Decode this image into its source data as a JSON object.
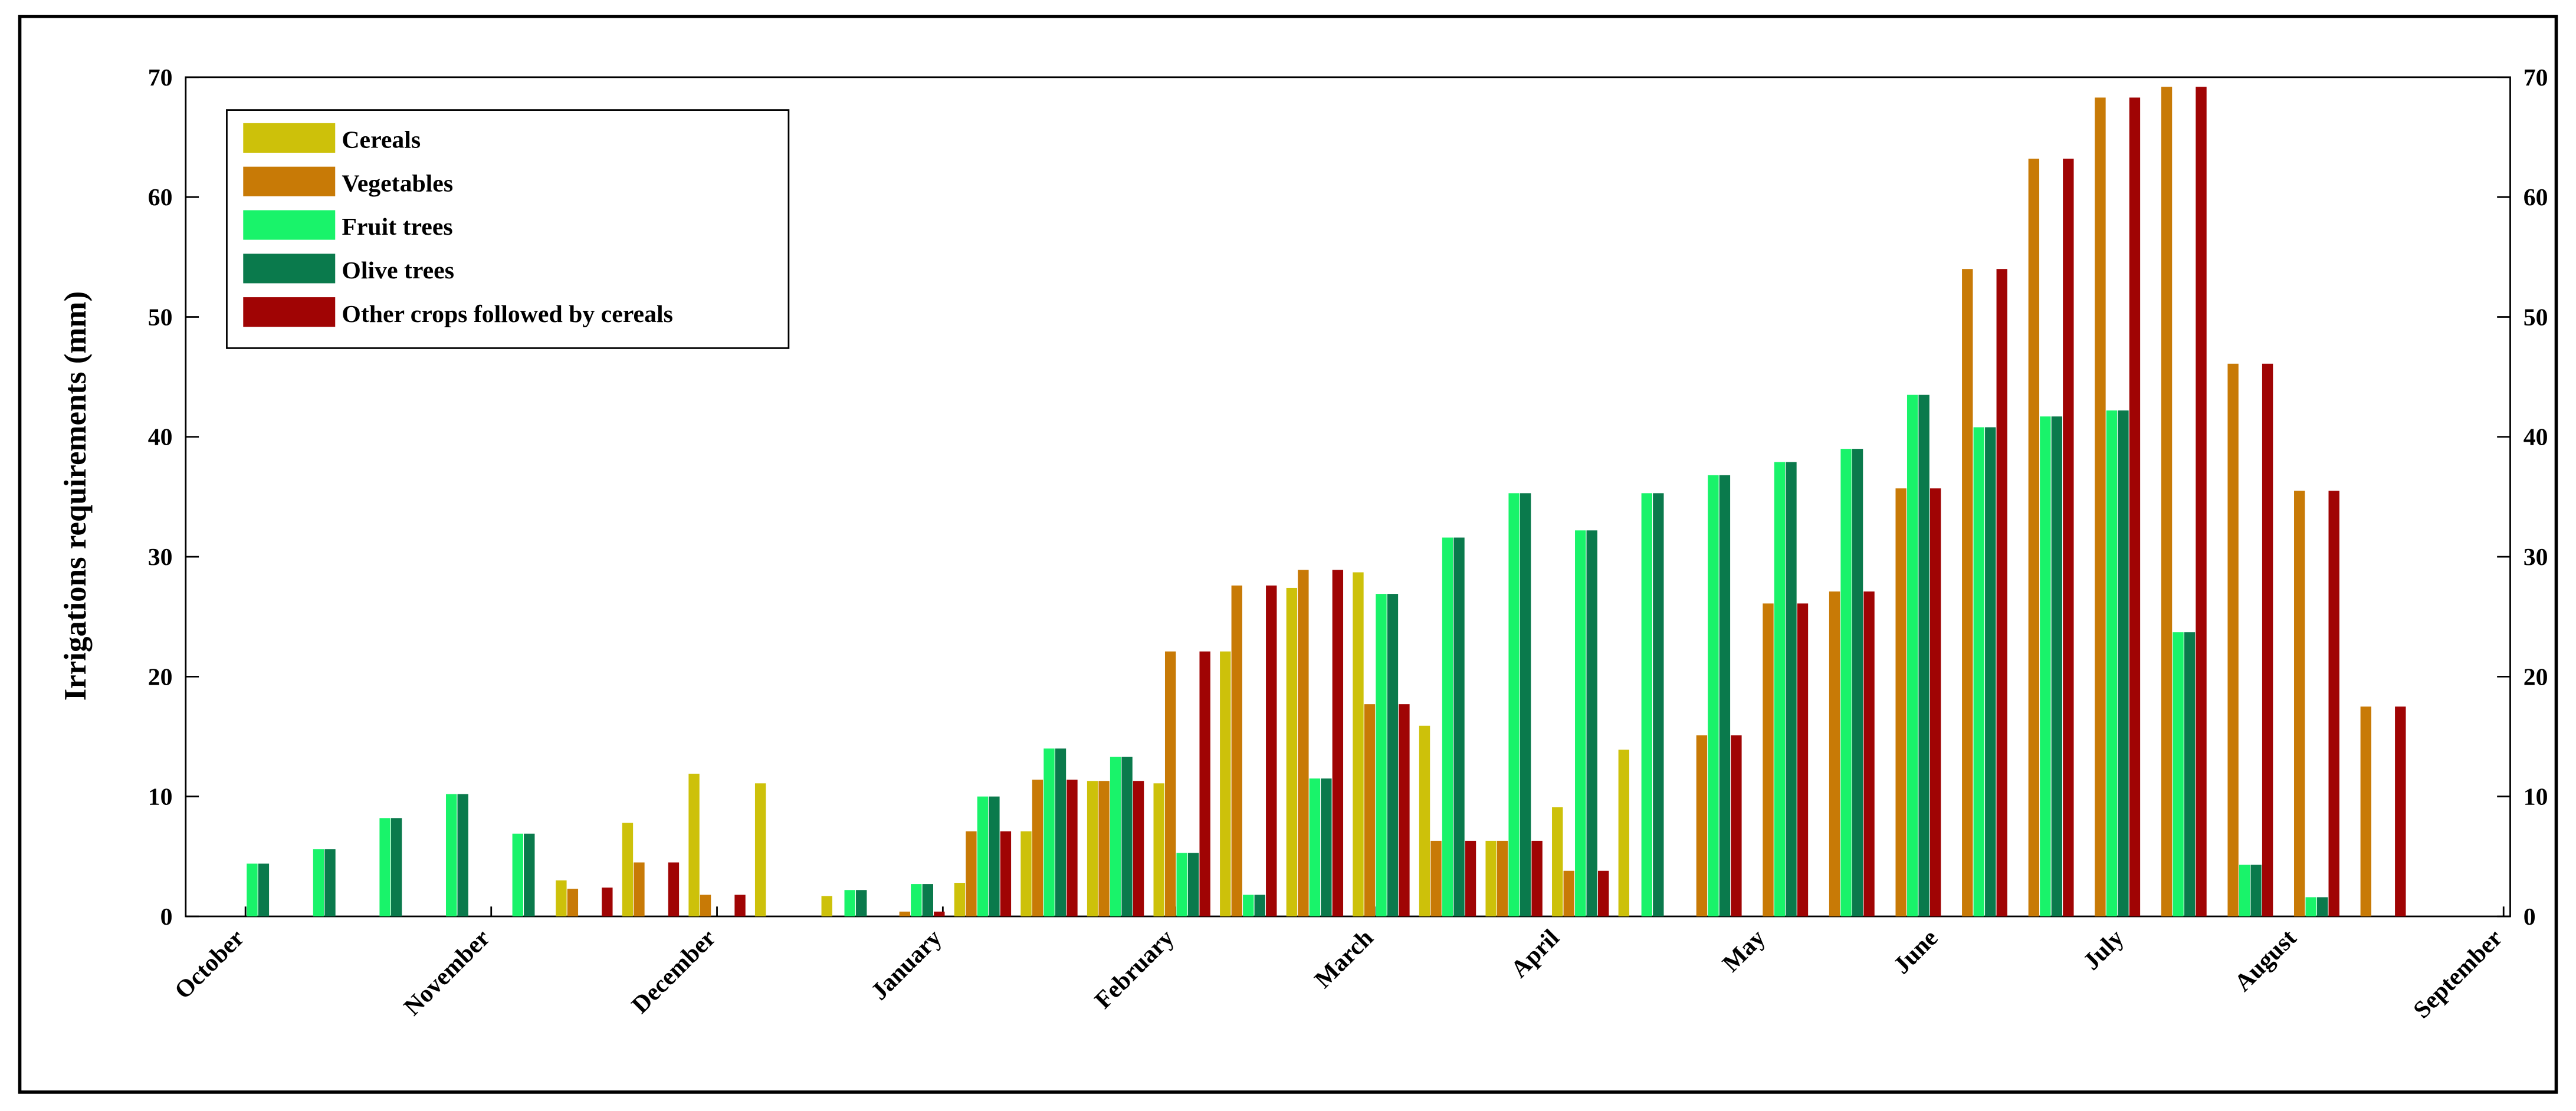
{
  "chart_data": {
    "type": "bar",
    "y_label": "Irrigations requirements (mm)",
    "x": [
      1,
      2,
      3,
      4,
      5,
      6,
      7,
      8,
      9,
      10,
      11,
      12,
      13,
      14,
      15,
      16,
      17,
      18,
      19,
      20,
      21,
      22,
      23,
      24,
      25,
      26,
      27,
      28,
      29,
      30,
      31,
      32,
      33
    ],
    "xlim": [
      0,
      35
    ],
    "xticks": [
      {
        "value": 0.9,
        "label": "October"
      },
      {
        "value": 4.6,
        "label": "November"
      },
      {
        "value": 8,
        "label": "December"
      },
      {
        "value": 11.4,
        "label": "January"
      },
      {
        "value": 14.9,
        "label": "February"
      },
      {
        "value": 17.9,
        "label": "March"
      },
      {
        "value": 20.7,
        "label": "April"
      },
      {
        "value": 23.8,
        "label": "May"
      },
      {
        "value": 26.4,
        "label": "June"
      },
      {
        "value": 29.2,
        "label": "July"
      },
      {
        "value": 31.8,
        "label": "August"
      },
      {
        "value": 34.9,
        "label": "September"
      }
    ],
    "ylim": [
      0,
      70
    ],
    "yticks": [
      0,
      10,
      20,
      30,
      40,
      50,
      60,
      70
    ],
    "legend": "upper left",
    "series": [
      {
        "name": "Cereals",
        "color": "#cdc10a",
        "values": [
          null,
          null,
          null,
          null,
          null,
          3,
          7.8,
          11.9,
          11.1,
          1.7,
          null,
          2.8,
          7.1,
          11.3,
          11.1,
          22.1,
          27.4,
          28.7,
          15.9,
          6.3,
          9.1,
          13.9,
          null,
          null,
          null,
          null,
          null,
          null,
          null,
          null,
          null,
          null,
          null
        ]
      },
      {
        "name": "Vegetables",
        "color": "#c87a06",
        "values": [
          null,
          null,
          null,
          null,
          null,
          2.3,
          4.5,
          1.8,
          null,
          null,
          0.4,
          7.1,
          11.4,
          11.3,
          22.1,
          27.6,
          28.9,
          17.7,
          6.3,
          6.3,
          3.8,
          null,
          15.1,
          26.1,
          27.1,
          35.7,
          54,
          63.2,
          68.3,
          69.2,
          46.1,
          35.5,
          17.5
        ]
      },
      {
        "name": "Fruit trees",
        "color": "#19f36a",
        "values": [
          4.4,
          5.6,
          8.2,
          10.2,
          6.9,
          null,
          null,
          null,
          null,
          2.2,
          2.7,
          10,
          14,
          13.3,
          5.3,
          1.8,
          11.5,
          26.9,
          31.6,
          35.3,
          32.2,
          35.3,
          36.8,
          37.9,
          39,
          43.5,
          40.8,
          41.7,
          42.2,
          23.7,
          4.3,
          1.6,
          null
        ]
      },
      {
        "name": "Olive trees",
        "color": "#0a7a4c",
        "values": [
          4.4,
          5.6,
          8.2,
          10.2,
          6.9,
          null,
          null,
          null,
          null,
          2.2,
          2.7,
          10,
          14,
          13.3,
          5.3,
          1.8,
          11.5,
          26.9,
          31.6,
          35.3,
          32.2,
          35.3,
          36.8,
          37.9,
          39,
          43.5,
          40.8,
          41.7,
          42.2,
          23.7,
          4.3,
          1.6,
          null
        ]
      },
      {
        "name": "Other crops followed by cereals",
        "color": "#a00404",
        "values": [
          null,
          null,
          null,
          null,
          null,
          2.4,
          4.5,
          1.8,
          null,
          null,
          0.4,
          7.1,
          11.4,
          11.3,
          22.1,
          27.6,
          28.9,
          17.7,
          6.3,
          6.3,
          3.8,
          null,
          15.1,
          26.1,
          27.1,
          35.7,
          54,
          63.2,
          68.3,
          69.2,
          46.1,
          35.5,
          17.5
        ]
      }
    ]
  }
}
